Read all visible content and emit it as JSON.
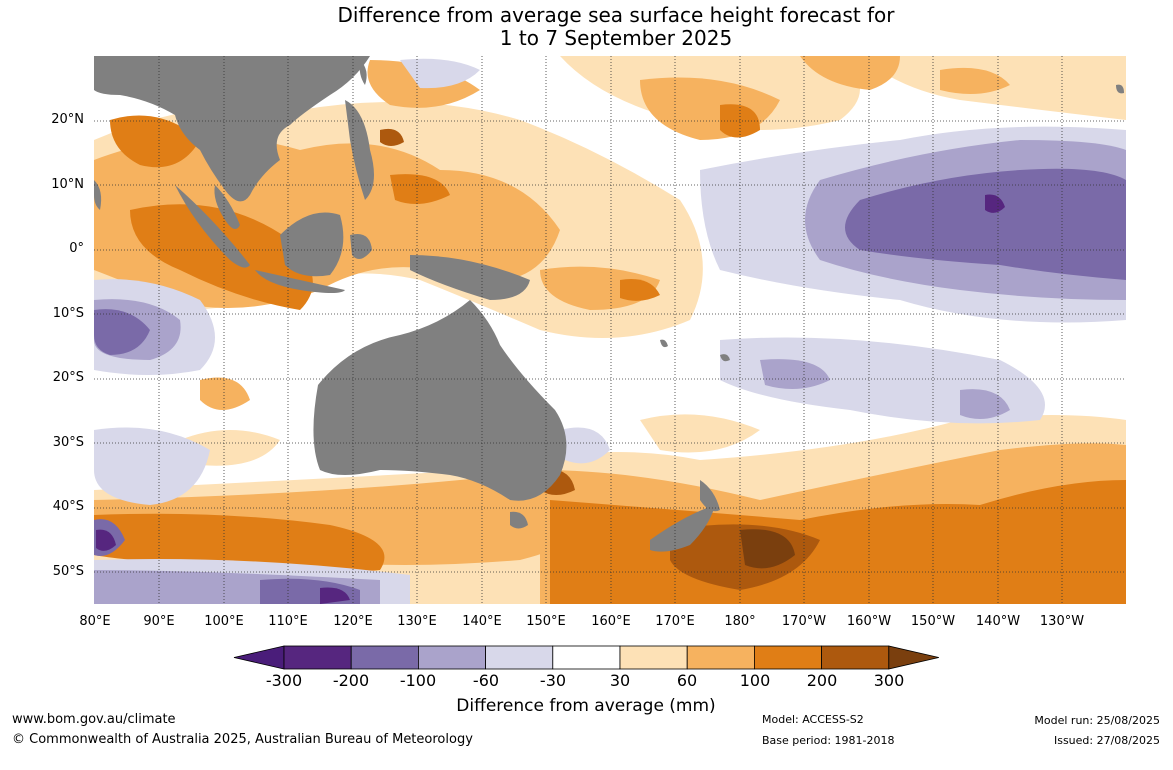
{
  "title": {
    "line1": "Difference from average sea surface height forecast for",
    "line2": "1 to 7 September 2025"
  },
  "axes": {
    "lat_labels": [
      "20°N",
      "10°N",
      "0°",
      "10°S",
      "20°S",
      "30°S",
      "40°S",
      "50°S"
    ],
    "lon_labels": [
      "80°E",
      "90°E",
      "100°E",
      "110°E",
      "120°E",
      "130°E",
      "140°E",
      "150°E",
      "160°E",
      "170°E",
      "180°",
      "170°W",
      "160°W",
      "150°W",
      "140°W",
      "130°W"
    ]
  },
  "colorbar": {
    "labels": [
      "-300",
      "-200",
      "-100",
      "-60",
      "-30",
      "30",
      "60",
      "100",
      "200",
      "300"
    ],
    "colors": [
      "#4a1d7a",
      "#56267f",
      "#7a6aa8",
      "#aaa3cb",
      "#d8d8ea",
      "#ffffff",
      "#fde1b6",
      "#f6b25f",
      "#e07e16",
      "#ad590e",
      "#7a3f0e"
    ],
    "title": "Difference from average (mm)"
  },
  "map_colors": {
    "land": "#808080",
    "ocean_neutral": "#ffffff",
    "grid": "#333333"
  },
  "footer": {
    "website": "www.bom.gov.au/climate",
    "copyright": "© Commonwealth of Australia 2025, Australian Bureau of Meteorology",
    "model": "Model: ACCESS-S2",
    "base_period": "Base period: 1981-2018",
    "model_run": "Model run: 25/08/2025",
    "issued": "Issued: 27/08/2025"
  }
}
